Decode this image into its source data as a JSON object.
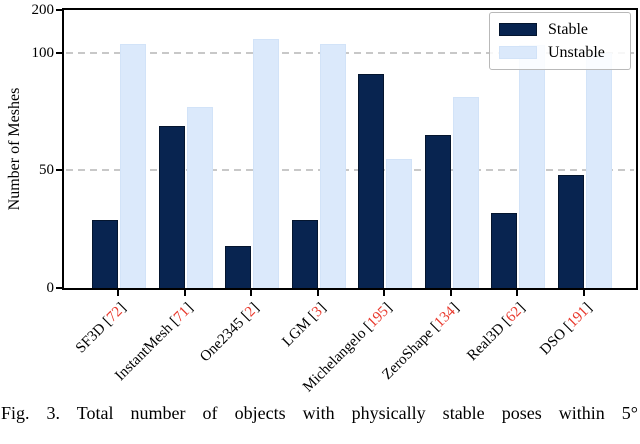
{
  "figure": {
    "caption": "Fig. 3. Total number of objects with physically stable poses within 5°"
  },
  "colors": {
    "stable_bar": "#082450",
    "stable_bar_edge": "#04152e",
    "unstable_bar": "#dbe9fb",
    "unstable_bar_edge": "#d2e3f8",
    "grid": "#c8c8c8",
    "citation_red": "#e8372b",
    "axis": "#000000",
    "legend_border": "#b9b9b9"
  },
  "chart_data": {
    "type": "bar",
    "title": "",
    "xlabel": "",
    "ylabel": "Number of Meshes",
    "categories": [
      {
        "label": "SF3D",
        "cite": "72"
      },
      {
        "label": "InstantMesh",
        "cite": "71"
      },
      {
        "label": "One2345",
        "cite": "2"
      },
      {
        "label": "LGM",
        "cite": "3"
      },
      {
        "label": "Michelangelo",
        "cite": "195"
      },
      {
        "label": "ZeroShape",
        "cite": "134"
      },
      {
        "label": "Real3D",
        "cite": "62"
      },
      {
        "label": "DSO",
        "cite": "191"
      }
    ],
    "series": [
      {
        "name": "Stable",
        "values": [
          29,
          69,
          18,
          29,
          91,
          65,
          32,
          48
        ]
      },
      {
        "name": "Unstable",
        "values": [
          120,
          77,
          131,
          120,
          55,
          81,
          117,
          100
        ]
      }
    ],
    "ylim": [
      0,
      200
    ],
    "yticks": [
      0,
      50,
      100,
      200
    ],
    "gridline_values": [
      50,
      100
    ],
    "grid": "dashed horizontal",
    "scale_note": "y axis linear from 0 to 100, compressed from 100 to 200",
    "legend_position": "upper right",
    "legend_entries": [
      "Stable",
      "Unstable"
    ],
    "note": "Unstable bar tops for Real3D and DSO are partially hidden behind the legend; values estimated."
  }
}
